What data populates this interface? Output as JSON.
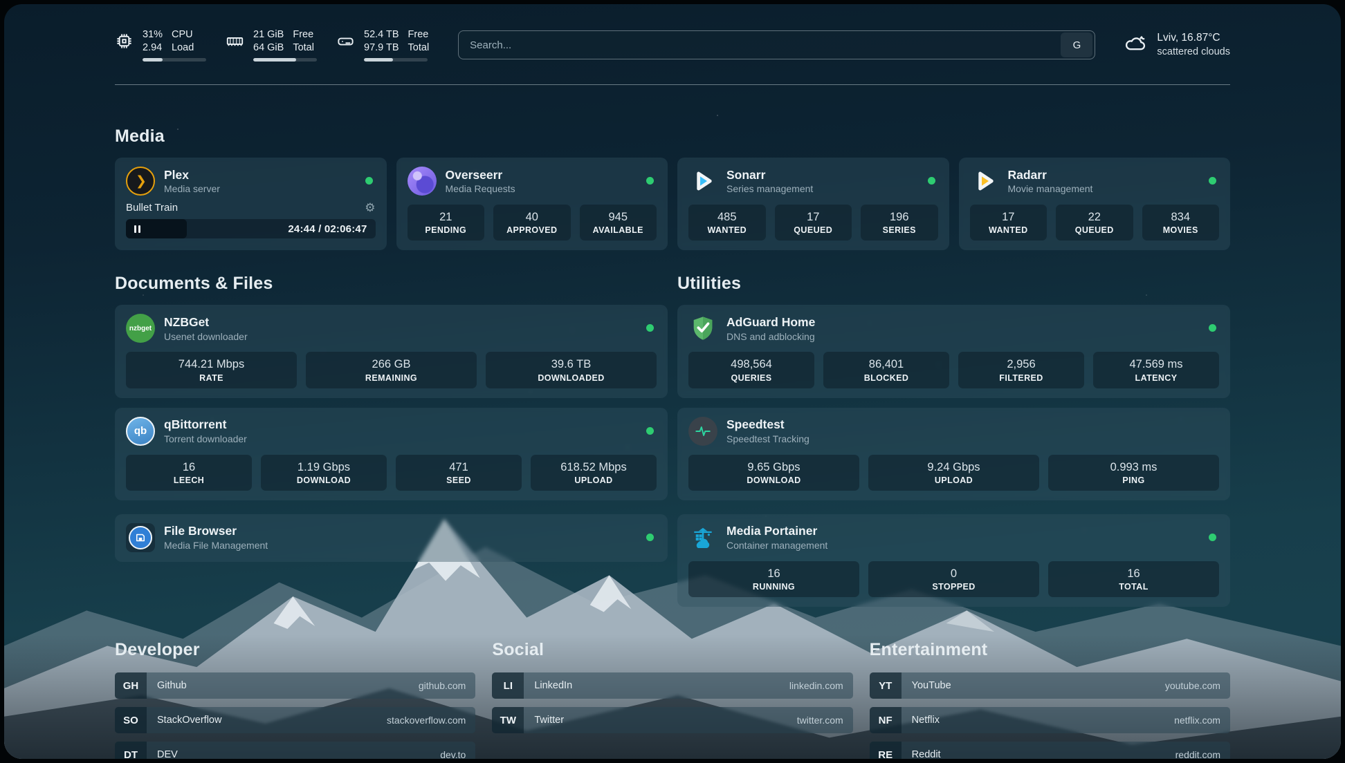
{
  "colors": {
    "status_green": "#2ecc71",
    "plex_gold": "#e5a00d",
    "sonarr_blue": "#38bdf8",
    "radarr_yellow": "#fbbf24"
  },
  "header": {
    "stats": [
      {
        "icon": "cpu-icon",
        "line1": "31%",
        "line2": "2.94",
        "label1": "CPU",
        "label2": "Load",
        "progress": 31
      },
      {
        "icon": "ram-icon",
        "line1": "21 GiB",
        "line2": "64 GiB",
        "label1": "Free",
        "label2": "Total",
        "progress": 67
      },
      {
        "icon": "disk-icon",
        "line1": "52.4 TB",
        "line2": "97.9 TB",
        "label1": "Free",
        "label2": "Total",
        "progress": 46
      }
    ],
    "search": {
      "placeholder": "Search...",
      "engine_label": "G"
    },
    "weather": {
      "title": "Lviv, 16.87°C",
      "subtitle": "scattered clouds"
    }
  },
  "sections": {
    "media": {
      "title": "Media",
      "plex": {
        "name": "Plex",
        "desc": "Media server",
        "now_playing": "Bullet Train",
        "time": "24:44 / 02:06:47"
      },
      "overseerr": {
        "name": "Overseerr",
        "desc": "Media Requests",
        "stats": [
          {
            "value": "21",
            "label": "PENDING"
          },
          {
            "value": "40",
            "label": "APPROVED"
          },
          {
            "value": "945",
            "label": "AVAILABLE"
          }
        ]
      },
      "sonarr": {
        "name": "Sonarr",
        "desc": "Series management",
        "stats": [
          {
            "value": "485",
            "label": "WANTED"
          },
          {
            "value": "17",
            "label": "QUEUED"
          },
          {
            "value": "196",
            "label": "SERIES"
          }
        ]
      },
      "radarr": {
        "name": "Radarr",
        "desc": "Movie management",
        "stats": [
          {
            "value": "17",
            "label": "WANTED"
          },
          {
            "value": "22",
            "label": "QUEUED"
          },
          {
            "value": "834",
            "label": "MOVIES"
          }
        ]
      }
    },
    "documents": {
      "title": "Documents & Files",
      "nzbget": {
        "name": "NZBGet",
        "desc": "Usenet downloader",
        "icon_text": "nzbget",
        "stats": [
          {
            "value": "744.21 Mbps",
            "label": "RATE"
          },
          {
            "value": "266 GB",
            "label": "REMAINING"
          },
          {
            "value": "39.6 TB",
            "label": "DOWNLOADED"
          }
        ]
      },
      "qbittorrent": {
        "name": "qBittorrent",
        "desc": "Torrent downloader",
        "icon_text": "qb",
        "stats": [
          {
            "value": "16",
            "label": "LEECH"
          },
          {
            "value": "1.19 Gbps",
            "label": "DOWNLOAD"
          },
          {
            "value": "471",
            "label": "SEED"
          },
          {
            "value": "618.52 Mbps",
            "label": "UPLOAD"
          }
        ]
      },
      "filebrowser": {
        "name": "File Browser",
        "desc": "Media File Management"
      }
    },
    "utilities": {
      "title": "Utilities",
      "adguard": {
        "name": "AdGuard Home",
        "desc": "DNS and adblocking",
        "stats": [
          {
            "value": "498,564",
            "label": "QUERIES"
          },
          {
            "value": "86,401",
            "label": "BLOCKED"
          },
          {
            "value": "2,956",
            "label": "FILTERED"
          },
          {
            "value": "47.569 ms",
            "label": "LATENCY"
          }
        ]
      },
      "speedtest": {
        "name": "Speedtest",
        "desc": "Speedtest Tracking",
        "stats": [
          {
            "value": "9.65 Gbps",
            "label": "DOWNLOAD"
          },
          {
            "value": "9.24 Gbps",
            "label": "UPLOAD"
          },
          {
            "value": "0.993 ms",
            "label": "PING"
          }
        ]
      },
      "portainer": {
        "name": "Media Portainer",
        "desc": "Container management",
        "stats": [
          {
            "value": "16",
            "label": "RUNNING"
          },
          {
            "value": "0",
            "label": "STOPPED"
          },
          {
            "value": "16",
            "label": "TOTAL"
          }
        ]
      }
    },
    "bookmarks": {
      "developer": {
        "title": "Developer",
        "items": [
          {
            "abbr": "GH",
            "name": "Github",
            "url": "github.com"
          },
          {
            "abbr": "SO",
            "name": "StackOverflow",
            "url": "stackoverflow.com"
          },
          {
            "abbr": "DT",
            "name": "DEV",
            "url": "dev.to"
          }
        ]
      },
      "social": {
        "title": "Social",
        "items": [
          {
            "abbr": "LI",
            "name": "LinkedIn",
            "url": "linkedin.com"
          },
          {
            "abbr": "TW",
            "name": "Twitter",
            "url": "twitter.com"
          }
        ]
      },
      "entertainment": {
        "title": "Entertainment",
        "items": [
          {
            "abbr": "YT",
            "name": "YouTube",
            "url": "youtube.com"
          },
          {
            "abbr": "NF",
            "name": "Netflix",
            "url": "netflix.com"
          },
          {
            "abbr": "RE",
            "name": "Reddit",
            "url": "reddit.com"
          }
        ]
      }
    }
  }
}
